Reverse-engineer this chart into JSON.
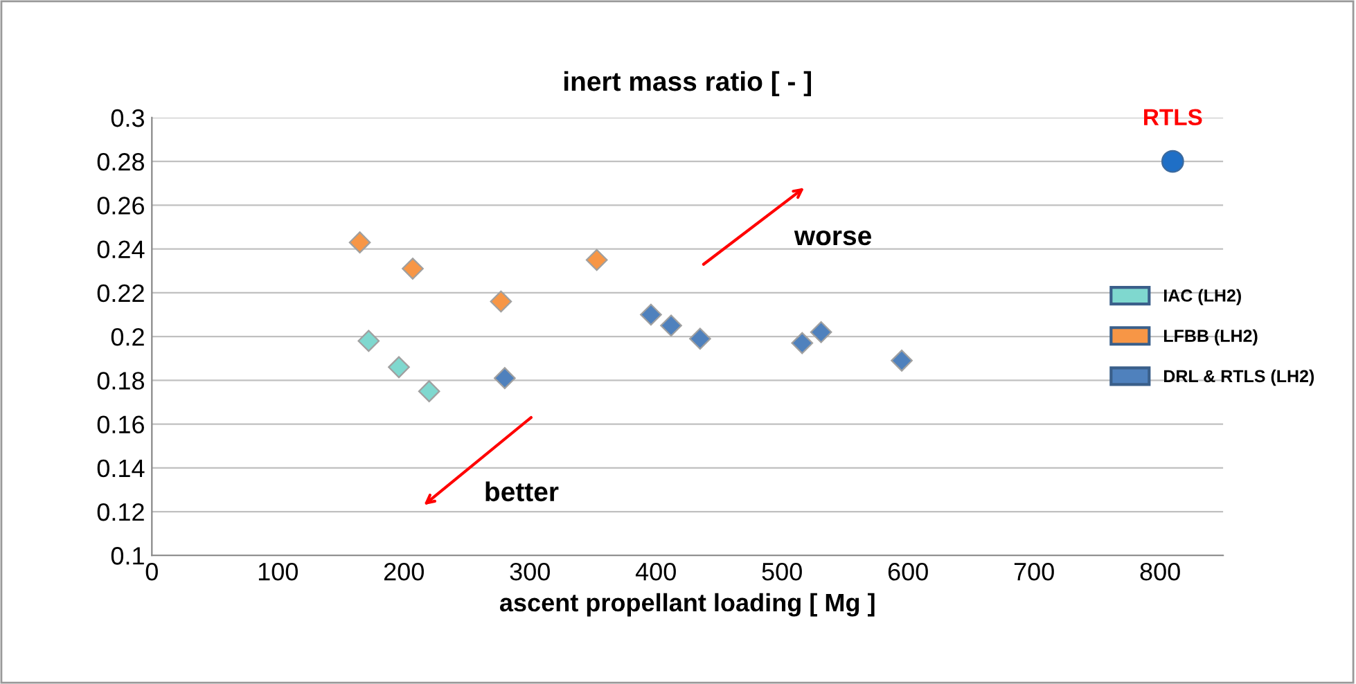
{
  "chart_data": {
    "type": "scatter",
    "title": "inert mass ratio [ - ]",
    "xlabel": "ascent propellant loading [ Mg ]",
    "xlim": [
      0,
      850
    ],
    "xticks": [
      0,
      100,
      200,
      300,
      400,
      500,
      600,
      700,
      800
    ],
    "ylim": [
      0.1,
      0.3
    ],
    "yticks": [
      0.1,
      0.12,
      0.14,
      0.16,
      0.18,
      0.2,
      0.22,
      0.24,
      0.26,
      0.28,
      0.3
    ],
    "grid": "y",
    "legend": "right",
    "marker": "diamond",
    "series": [
      {
        "name": "IAC (LH2)",
        "color": "#7fd8cf",
        "x": [
          172,
          196,
          220
        ],
        "values": [
          0.198,
          0.186,
          0.175
        ]
      },
      {
        "name": "LFBB (LH2)",
        "color": "#f79646",
        "x": [
          165,
          207,
          277,
          353
        ],
        "values": [
          0.243,
          0.231,
          0.216,
          0.235
        ]
      },
      {
        "name": "DRL & RTLS (LH2)",
        "color": "#4f81bd",
        "x": [
          280,
          396,
          412,
          435,
          516,
          531,
          595
        ],
        "values": [
          0.181,
          0.21,
          0.205,
          0.199,
          0.197,
          0.202,
          0.189
        ]
      },
      {
        "color": "#1f6fc6",
        "marker": "circle",
        "x": [
          810
        ],
        "values": [
          0.28
        ]
      }
    ],
    "annotations": [
      {
        "text": "RTLS",
        "x": 810,
        "y": 0.28
      },
      "worse",
      "better"
    ]
  }
}
